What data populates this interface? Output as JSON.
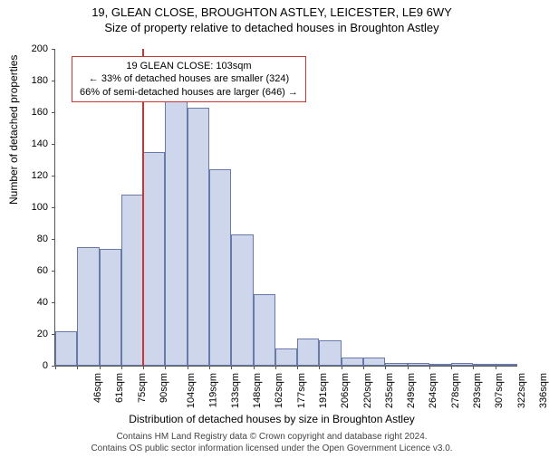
{
  "title_main": "19, GLEAN CLOSE, BROUGHTON ASTLEY, LEICESTER, LE9 6WY",
  "title_sub": "Size of property relative to detached houses in Broughton Astley",
  "ylabel": "Number of detached properties",
  "xlabel": "Distribution of detached houses by size in Broughton Astley",
  "footer_line1": "Contains HM Land Registry data © Crown copyright and database right 2024.",
  "footer_line2": "Contains OS public sector information licensed under the Open Government Licence v3.0.",
  "chart": {
    "type": "histogram",
    "ylim": [
      0,
      200
    ],
    "ytick_step": 20,
    "bar_fill": "#cdd6ea",
    "bar_stroke": "#6a7aa8",
    "bars": [
      {
        "label": "46sqm",
        "value": 22
      },
      {
        "label": "61sqm",
        "value": 75
      },
      {
        "label": "75sqm",
        "value": 74
      },
      {
        "label": "90sqm",
        "value": 108
      },
      {
        "label": "104sqm",
        "value": 135
      },
      {
        "label": "119sqm",
        "value": 168
      },
      {
        "label": "133sqm",
        "value": 163
      },
      {
        "label": "148sqm",
        "value": 124
      },
      {
        "label": "162sqm",
        "value": 83
      },
      {
        "label": "177sqm",
        "value": 45
      },
      {
        "label": "191sqm",
        "value": 11
      },
      {
        "label": "206sqm",
        "value": 17
      },
      {
        "label": "220sqm",
        "value": 16
      },
      {
        "label": "235sqm",
        "value": 5
      },
      {
        "label": "249sqm",
        "value": 5
      },
      {
        "label": "264sqm",
        "value": 2
      },
      {
        "label": "278sqm",
        "value": 2
      },
      {
        "label": "293sqm",
        "value": 0
      },
      {
        "label": "307sqm",
        "value": 2
      },
      {
        "label": "322sqm",
        "value": 1
      },
      {
        "label": "336sqm",
        "value": 0
      }
    ],
    "marker": {
      "position_index": 4,
      "color": "#cc3333"
    },
    "annotation": {
      "line1": "19 GLEAN CLOSE: 103sqm",
      "line2": "← 33% of detached houses are smaller (324)",
      "line3": "66% of semi-detached houses are larger (646) →",
      "border_color": "#cc3333"
    }
  }
}
